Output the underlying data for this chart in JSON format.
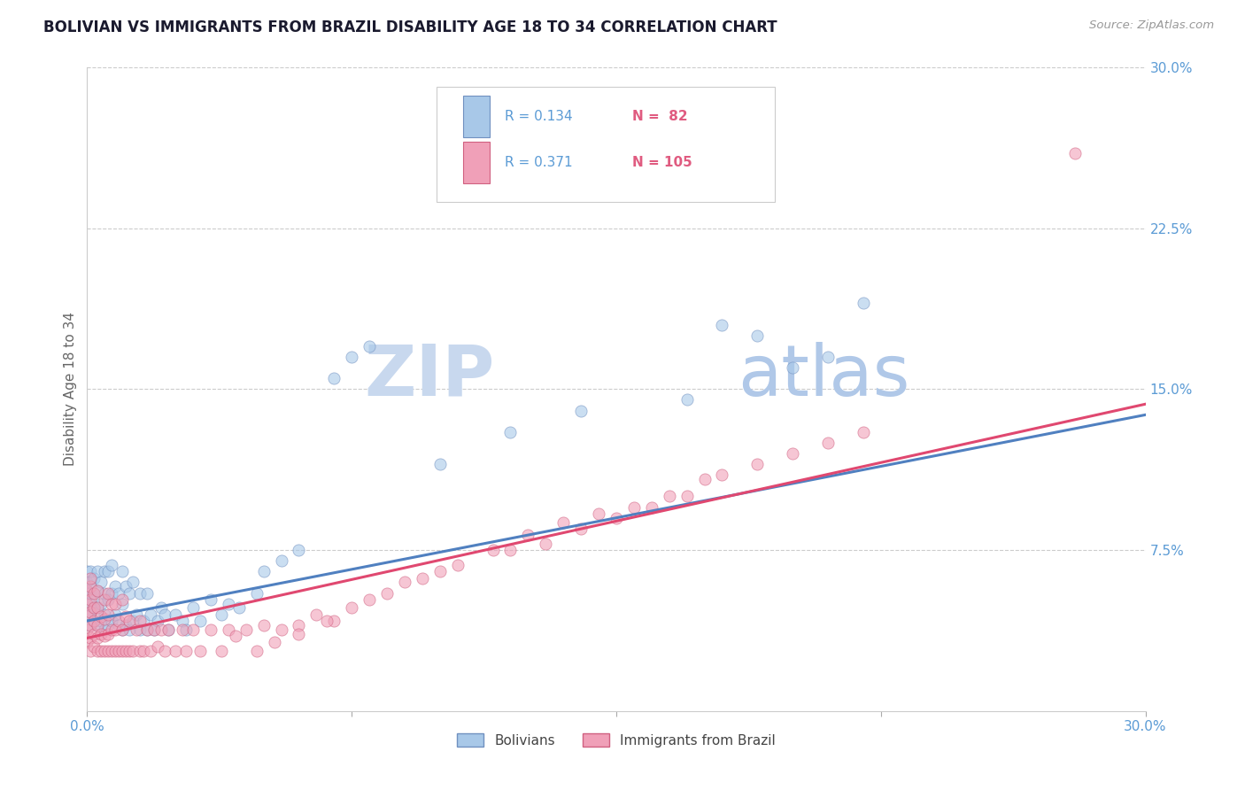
{
  "title": "BOLIVIAN VS IMMIGRANTS FROM BRAZIL DISABILITY AGE 18 TO 34 CORRELATION CHART",
  "source_text": "Source: ZipAtlas.com",
  "ylabel": "Disability Age 18 to 34",
  "xlim": [
    0.0,
    0.3
  ],
  "ylim": [
    0.0,
    0.3
  ],
  "background_color": "#ffffff",
  "grid_color": "#cccccc",
  "title_color": "#1a1a2e",
  "axis_label_color": "#5b9bd5",
  "watermark_text1": "ZIP",
  "watermark_text2": "atlas",
  "watermark_color1": "#c8d8ee",
  "watermark_color2": "#b0c8e8",
  "legend_r1": "R = 0.134",
  "legend_n1": "N =  82",
  "legend_r2": "R = 0.371",
  "legend_n2": "N = 105",
  "legend_r_color": "#5b9bd5",
  "legend_n_color": "#e05b80",
  "series1_color": "#a8c8e8",
  "series2_color": "#f0a0b8",
  "series1_edge": "#7090c0",
  "series2_edge": "#d06080",
  "trend1_color": "#5080c0",
  "trend1_style": "-",
  "trend2_color": "#e04870",
  "trend2_style": "-",
  "trend1_x0": 0.0,
  "trend1_x1": 0.3,
  "trend1_y0": 0.042,
  "trend1_y1": 0.138,
  "trend2_x0": 0.0,
  "trend2_x1": 0.3,
  "trend2_y0": 0.034,
  "trend2_y1": 0.143,
  "bolivians_x": [
    0.0,
    0.0,
    0.0,
    0.0,
    0.0,
    0.001,
    0.001,
    0.001,
    0.001,
    0.001,
    0.001,
    0.002,
    0.002,
    0.002,
    0.002,
    0.003,
    0.003,
    0.003,
    0.003,
    0.004,
    0.004,
    0.004,
    0.005,
    0.005,
    0.005,
    0.005,
    0.006,
    0.006,
    0.006,
    0.007,
    0.007,
    0.007,
    0.008,
    0.008,
    0.009,
    0.009,
    0.01,
    0.01,
    0.01,
    0.011,
    0.011,
    0.012,
    0.012,
    0.013,
    0.013,
    0.014,
    0.015,
    0.015,
    0.016,
    0.017,
    0.017,
    0.018,
    0.019,
    0.02,
    0.021,
    0.022,
    0.023,
    0.025,
    0.027,
    0.028,
    0.03,
    0.032,
    0.035,
    0.038,
    0.04,
    0.043,
    0.048,
    0.05,
    0.055,
    0.06,
    0.07,
    0.075,
    0.08,
    0.1,
    0.12,
    0.14,
    0.17,
    0.18,
    0.2,
    0.21,
    0.19,
    0.22
  ],
  "bolivians_y": [
    0.045,
    0.05,
    0.055,
    0.06,
    0.065,
    0.04,
    0.045,
    0.05,
    0.055,
    0.06,
    0.065,
    0.042,
    0.048,
    0.055,
    0.062,
    0.04,
    0.048,
    0.056,
    0.065,
    0.042,
    0.05,
    0.06,
    0.038,
    0.045,
    0.055,
    0.065,
    0.04,
    0.052,
    0.065,
    0.042,
    0.055,
    0.068,
    0.045,
    0.058,
    0.04,
    0.055,
    0.038,
    0.05,
    0.065,
    0.04,
    0.058,
    0.038,
    0.055,
    0.042,
    0.06,
    0.045,
    0.038,
    0.055,
    0.042,
    0.038,
    0.055,
    0.045,
    0.038,
    0.042,
    0.048,
    0.045,
    0.038,
    0.045,
    0.042,
    0.038,
    0.048,
    0.042,
    0.052,
    0.045,
    0.05,
    0.048,
    0.055,
    0.065,
    0.07,
    0.075,
    0.155,
    0.165,
    0.17,
    0.115,
    0.13,
    0.14,
    0.145,
    0.18,
    0.16,
    0.165,
    0.175,
    0.19
  ],
  "brazil_x": [
    0.0,
    0.0,
    0.0,
    0.0,
    0.0,
    0.001,
    0.001,
    0.001,
    0.001,
    0.001,
    0.001,
    0.001,
    0.002,
    0.002,
    0.002,
    0.002,
    0.002,
    0.003,
    0.003,
    0.003,
    0.003,
    0.003,
    0.004,
    0.004,
    0.004,
    0.005,
    0.005,
    0.005,
    0.005,
    0.006,
    0.006,
    0.006,
    0.006,
    0.007,
    0.007,
    0.007,
    0.008,
    0.008,
    0.008,
    0.009,
    0.009,
    0.01,
    0.01,
    0.01,
    0.011,
    0.011,
    0.012,
    0.012,
    0.013,
    0.014,
    0.015,
    0.015,
    0.016,
    0.017,
    0.018,
    0.019,
    0.02,
    0.021,
    0.022,
    0.023,
    0.025,
    0.027,
    0.028,
    0.03,
    0.032,
    0.035,
    0.038,
    0.04,
    0.042,
    0.045,
    0.05,
    0.055,
    0.06,
    0.065,
    0.07,
    0.08,
    0.09,
    0.1,
    0.12,
    0.13,
    0.14,
    0.15,
    0.16,
    0.17,
    0.18,
    0.19,
    0.2,
    0.21,
    0.175,
    0.22,
    0.155,
    0.165,
    0.135,
    0.145,
    0.125,
    0.115,
    0.105,
    0.095,
    0.085,
    0.075,
    0.068,
    0.06,
    0.053,
    0.048,
    0.28
  ],
  "brazil_y": [
    0.032,
    0.038,
    0.044,
    0.05,
    0.056,
    0.028,
    0.034,
    0.04,
    0.046,
    0.052,
    0.058,
    0.062,
    0.03,
    0.036,
    0.042,
    0.048,
    0.055,
    0.028,
    0.034,
    0.04,
    0.048,
    0.056,
    0.028,
    0.036,
    0.044,
    0.028,
    0.035,
    0.043,
    0.052,
    0.028,
    0.036,
    0.045,
    0.055,
    0.028,
    0.038,
    0.05,
    0.028,
    0.038,
    0.05,
    0.028,
    0.042,
    0.028,
    0.038,
    0.052,
    0.028,
    0.044,
    0.028,
    0.042,
    0.028,
    0.038,
    0.028,
    0.042,
    0.028,
    0.038,
    0.028,
    0.038,
    0.03,
    0.038,
    0.028,
    0.038,
    0.028,
    0.038,
    0.028,
    0.038,
    0.028,
    0.038,
    0.028,
    0.038,
    0.035,
    0.038,
    0.04,
    0.038,
    0.04,
    0.045,
    0.042,
    0.052,
    0.06,
    0.065,
    0.075,
    0.078,
    0.085,
    0.09,
    0.095,
    0.1,
    0.11,
    0.115,
    0.12,
    0.125,
    0.108,
    0.13,
    0.095,
    0.1,
    0.088,
    0.092,
    0.082,
    0.075,
    0.068,
    0.062,
    0.055,
    0.048,
    0.042,
    0.036,
    0.032,
    0.028,
    0.26
  ]
}
